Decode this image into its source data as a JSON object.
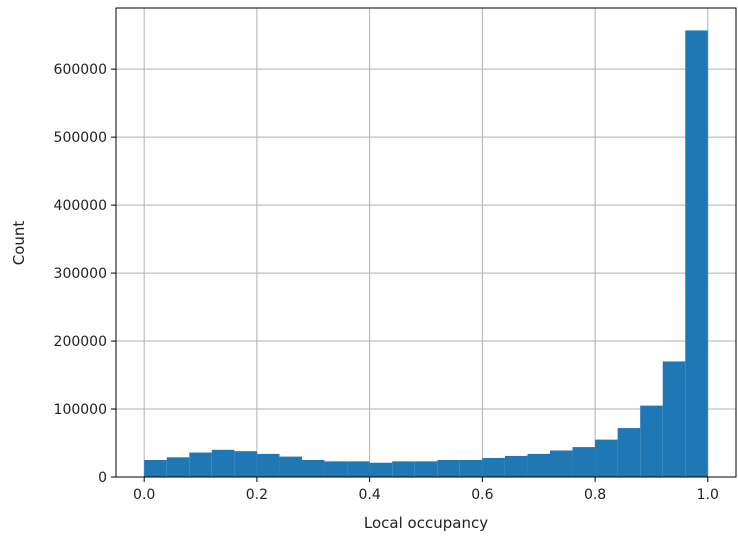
{
  "chart_data": {
    "type": "bar",
    "xlabel": "Local occupancy",
    "ylabel": "Count",
    "xlim": [
      -0.05,
      1.05
    ],
    "ylim": [
      0,
      690000
    ],
    "x_ticks": [
      0.0,
      0.2,
      0.4,
      0.6,
      0.8,
      1.0
    ],
    "x_tick_labels": [
      "0.0",
      "0.2",
      "0.4",
      "0.6",
      "0.8",
      "1.0"
    ],
    "y_ticks": [
      0,
      100000,
      200000,
      300000,
      400000,
      500000,
      600000
    ],
    "y_tick_labels": [
      "0",
      "100000",
      "200000",
      "300000",
      "400000",
      "500000",
      "600000"
    ],
    "grid": true,
    "bin_edges": [
      0.0,
      0.04,
      0.08,
      0.12,
      0.16,
      0.2,
      0.24,
      0.28,
      0.32,
      0.36,
      0.4,
      0.44,
      0.48,
      0.52,
      0.56,
      0.6,
      0.64,
      0.68,
      0.72,
      0.76,
      0.8,
      0.84,
      0.88,
      0.92,
      0.96,
      1.0
    ],
    "values": [
      25000,
      29000,
      36000,
      40000,
      38000,
      34000,
      30000,
      25000,
      23000,
      23000,
      21000,
      23000,
      23000,
      25000,
      25000,
      28000,
      31000,
      34000,
      39000,
      44000,
      55000,
      72000,
      105000,
      170000,
      657000
    ],
    "color": "#1f77b4"
  }
}
